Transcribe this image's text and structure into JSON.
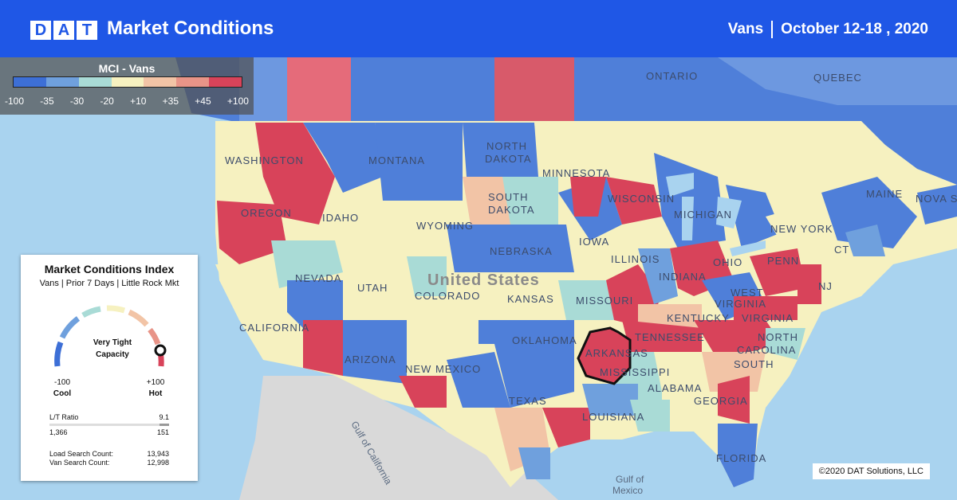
{
  "header": {
    "logo_letters": [
      "D",
      "A",
      "T"
    ],
    "title": "Market Conditions",
    "equipment": "Vans",
    "date_range": "October 12-18 , 2020"
  },
  "legend": {
    "title": "MCI - Vans",
    "colors": [
      "#3d6fd6",
      "#6fa0dd",
      "#a9dbd6",
      "#f6f1c0",
      "#f2c4a6",
      "#e89488",
      "#d8435a"
    ],
    "ticks": [
      "-100",
      "-35",
      "-30",
      "-20",
      "+10",
      "+35",
      "+45",
      "+100"
    ]
  },
  "panel": {
    "title": "Market Conditions Index",
    "subtitle": "Vans | Prior 7 Days | Little Rock Mkt",
    "gauge_label_line1": "Very Tight",
    "gauge_label_line2": "Capacity",
    "gauge_value": 100,
    "min_value": "-100",
    "min_label": "Cool",
    "max_value": "+100",
    "max_label": "Hot",
    "lt_ratio_label": "L/T Ratio",
    "lt_ratio_value": "9.1",
    "lt_left": "1,366",
    "lt_right": "151",
    "load_search_label": "Load Search Count:",
    "load_search_value": "13,943",
    "van_search_label": "Van Search Count:",
    "van_search_value": "12,998"
  },
  "map_labels": {
    "ontario": "ONTARIO",
    "quebec": "QUEBEC",
    "washington": "WASHINGTON",
    "montana": "MONTANA",
    "north_dakota_1": "NORTH",
    "north_dakota_2": "DAKOTA",
    "minnesota": "MINNESOTA",
    "south_dakota_1": "SOUTH",
    "south_dakota_2": "DAKOTA",
    "oregon": "OREGON",
    "idaho": "IDAHO",
    "wyoming": "WYOMING",
    "wisconsin": "WISCONSIN",
    "michigan": "MICHIGAN",
    "maine": "MAINE",
    "nova_scotia": "NOVA SC",
    "new_york": "NEW YORK",
    "nebraska": "NEBRASKA",
    "iowa": "IOWA",
    "nevada": "NEVADA",
    "utah": "UTAH",
    "united_states": "United States",
    "colorado": "COLORADO",
    "kansas": "KANSAS",
    "illinois": "ILLINOIS",
    "indiana": "INDIANA",
    "ohio": "OHIO",
    "penn": "PENN",
    "nj": "NJ",
    "ct": "CT",
    "missouri": "MISSOURI",
    "west_virginia_1": "WEST",
    "west_virginia_2": "VIRGINIA",
    "virginia": "VIRGINIA",
    "kentucky": "KENTUCKY",
    "california": "CALIFORNIA",
    "arizona": "ARIZONA",
    "new_mexico": "NEW MEXICO",
    "oklahoma": "OKLAHOMA",
    "arkansas": "ARKANSAS",
    "tennessee": "TENNESSEE",
    "north_carolina": "NORTH",
    "carolina": "CAROLINA",
    "south_1": "SOUTH",
    "mississippi": "MISSISSIPPI",
    "alabama": "ALABAMA",
    "georgia": "GEORGIA",
    "texas": "TEXAS",
    "louisiana": "LOUISIANA",
    "florida": "FLORIDA",
    "gulf_california": "Gulf of California",
    "gulf_mexico_1": "Gulf of",
    "gulf_mexico_2": "Mexico"
  },
  "copyright": "©2020 DAT Solutions, LLC"
}
